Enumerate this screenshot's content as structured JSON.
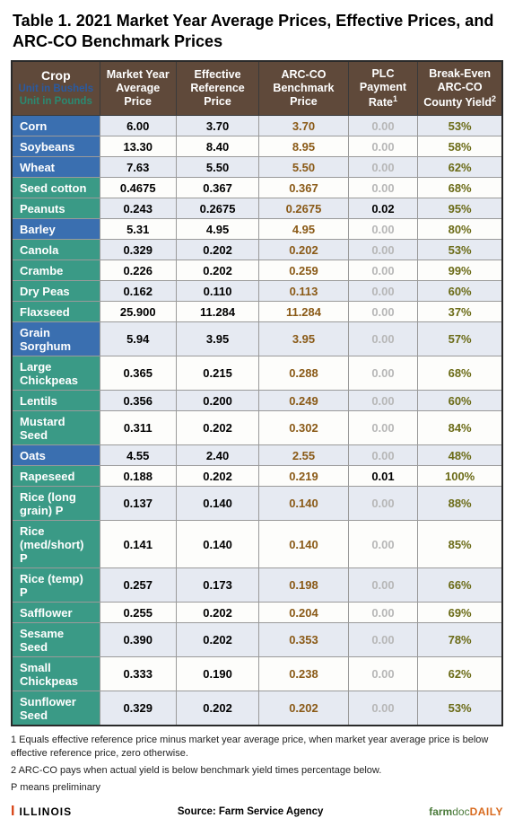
{
  "title": "Table 1.  2021 Market Year Average Prices, Effective Prices, and ARC-CO Benchmark Prices",
  "headers": {
    "crop_label": "Crop",
    "unit_bushels": "Unit in Bushels",
    "unit_pounds": "Unit in Pounds",
    "col1": "Market Year Average Price",
    "col2": "Effective Reference Price",
    "col3": "ARC-CO Benchmark Price",
    "col4": "PLC Payment Rate",
    "col4_sup": "1",
    "col5": "Break-Even ARC-CO County Yield",
    "col5_sup": "2"
  },
  "colors": {
    "blue_row": "#3a6fb0",
    "teal_row": "#3a9a86",
    "unit_bushels_color": "#2a5aa0",
    "unit_pounds_color": "#2a8a72",
    "header_bg": "#5f493a",
    "even_bg": "#e6eaf2",
    "odd_bg": "#fdfdfb",
    "dim_text": "#b7b7b7",
    "bench_text": "#8a5a17",
    "yield_text": "#6b6b17"
  },
  "rows": [
    {
      "crop": "Corn",
      "unit": "bu",
      "myap": "6.00",
      "erp": "3.70",
      "bench": "3.70",
      "plc": "0.00",
      "yield": "53%"
    },
    {
      "crop": "Soybeans",
      "unit": "bu",
      "myap": "13.30",
      "erp": "8.40",
      "bench": "8.95",
      "plc": "0.00",
      "yield": "58%"
    },
    {
      "crop": "Wheat",
      "unit": "bu",
      "myap": "7.63",
      "erp": "5.50",
      "bench": "5.50",
      "plc": "0.00",
      "yield": "62%"
    },
    {
      "crop": "Seed cotton",
      "unit": "lb",
      "myap": "0.4675",
      "erp": "0.367",
      "bench": "0.367",
      "plc": "0.00",
      "yield": "68%"
    },
    {
      "crop": "Peanuts",
      "unit": "lb",
      "myap": "0.243",
      "erp": "0.2675",
      "bench": "0.2675",
      "plc": "0.02",
      "yield": "95%"
    },
    {
      "crop": "Barley",
      "unit": "bu",
      "myap": "5.31",
      "erp": "4.95",
      "bench": "4.95",
      "plc": "0.00",
      "yield": "80%"
    },
    {
      "crop": "Canola",
      "unit": "lb",
      "myap": "0.329",
      "erp": "0.202",
      "bench": "0.202",
      "plc": "0.00",
      "yield": "53%"
    },
    {
      "crop": "Crambe",
      "unit": "lb",
      "myap": "0.226",
      "erp": "0.202",
      "bench": "0.259",
      "plc": "0.00",
      "yield": "99%"
    },
    {
      "crop": "Dry Peas",
      "unit": "lb",
      "myap": "0.162",
      "erp": "0.110",
      "bench": "0.113",
      "plc": "0.00",
      "yield": "60%"
    },
    {
      "crop": "Flaxseed",
      "unit": "lb",
      "myap": "25.900",
      "erp": "11.284",
      "bench": "11.284",
      "plc": "0.00",
      "yield": "37%"
    },
    {
      "crop": "Grain Sorghum",
      "unit": "bu",
      "myap": "5.94",
      "erp": "3.95",
      "bench": "3.95",
      "plc": "0.00",
      "yield": "57%"
    },
    {
      "crop": "Large Chickpeas",
      "unit": "lb",
      "myap": "0.365",
      "erp": "0.215",
      "bench": "0.288",
      "plc": "0.00",
      "yield": "68%"
    },
    {
      "crop": "Lentils",
      "unit": "lb",
      "myap": "0.356",
      "erp": "0.200",
      "bench": "0.249",
      "plc": "0.00",
      "yield": "60%"
    },
    {
      "crop": "Mustard Seed",
      "unit": "lb",
      "myap": "0.311",
      "erp": "0.202",
      "bench": "0.302",
      "plc": "0.00",
      "yield": "84%"
    },
    {
      "crop": "Oats",
      "unit": "bu",
      "myap": "4.55",
      "erp": "2.40",
      "bench": "2.55",
      "plc": "0.00",
      "yield": "48%"
    },
    {
      "crop": "Rapeseed",
      "unit": "lb",
      "myap": "0.188",
      "erp": "0.202",
      "bench": "0.219",
      "plc": "0.01",
      "yield": "100%"
    },
    {
      "crop": "Rice (long grain) P",
      "unit": "lb",
      "myap": "0.137",
      "erp": "0.140",
      "bench": "0.140",
      "plc": "0.00",
      "yield": "88%"
    },
    {
      "crop": "Rice (med/short) P",
      "unit": "lb",
      "myap": "0.141",
      "erp": "0.140",
      "bench": "0.140",
      "plc": "0.00",
      "yield": "85%"
    },
    {
      "crop": "Rice (temp) P",
      "unit": "lb",
      "myap": "0.257",
      "erp": "0.173",
      "bench": "0.198",
      "plc": "0.00",
      "yield": "66%"
    },
    {
      "crop": "Safflower",
      "unit": "lb",
      "myap": "0.255",
      "erp": "0.202",
      "bench": "0.204",
      "plc": "0.00",
      "yield": "69%"
    },
    {
      "crop": "Sesame Seed",
      "unit": "lb",
      "myap": "0.390",
      "erp": "0.202",
      "bench": "0.353",
      "plc": "0.00",
      "yield": "78%"
    },
    {
      "crop": "Small Chickpeas",
      "unit": "lb",
      "myap": "0.333",
      "erp": "0.190",
      "bench": "0.238",
      "plc": "0.00",
      "yield": "62%"
    },
    {
      "crop": "Sunflower Seed",
      "unit": "lb",
      "myap": "0.329",
      "erp": "0.202",
      "bench": "0.202",
      "plc": "0.00",
      "yield": "53%"
    }
  ],
  "footnotes": {
    "f1": "1 Equals effective reference price minus market year average price, when market year average price is below effective reference price, zero otherwise.",
    "f2": "2 ARC-CO pays when actual yield is below benchmark yield times percentage below.",
    "f3": "P means preliminary"
  },
  "footer": {
    "illinois": "ILLINOIS",
    "source": "Source:  Farm Service Agency",
    "brand_farm": "farm",
    "brand_doc": "doc",
    "brand_daily": "DAILY"
  }
}
